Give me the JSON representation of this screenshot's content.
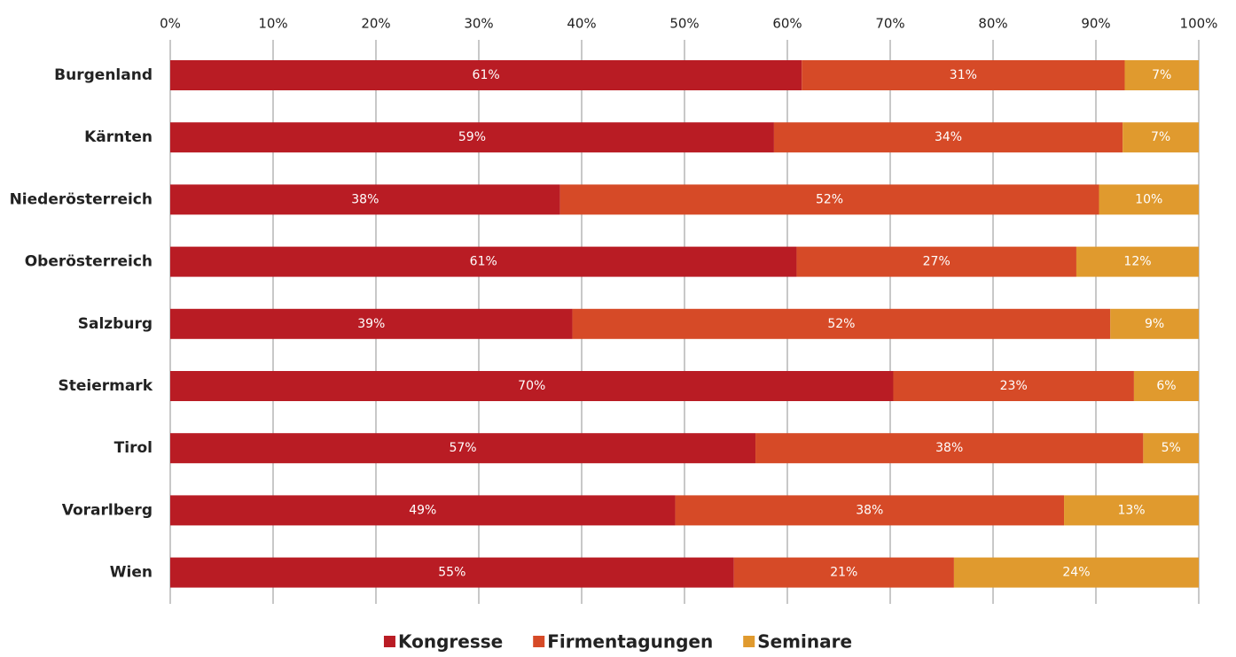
{
  "chart_data": {
    "type": "bar",
    "orientation": "horizontal",
    "stacked": true,
    "categories": [
      "Burgenland",
      "Kärnten",
      "Niederösterreich",
      "Oberösterreich",
      "Salzburg",
      "Steiermark",
      "Tirol",
      "Vorarlberg",
      "Wien"
    ],
    "series": [
      {
        "name": "Kongresse",
        "color": "#b91c24",
        "values": [
          61.4,
          58.7,
          37.9,
          60.9,
          39.1,
          70.3,
          56.9,
          49.1,
          54.8
        ],
        "value_labels": [
          "61%",
          "59%",
          "38%",
          "61%",
          "39%",
          "70%",
          "57%",
          "49%",
          "55%"
        ]
      },
      {
        "name": "Firmentagungen",
        "color": "#d64a27",
        "values": [
          31.4,
          33.9,
          52.4,
          27.2,
          52.3,
          23.4,
          37.7,
          37.8,
          21.4
        ],
        "value_labels": [
          "31%",
          "34%",
          "52%",
          "27%",
          "52%",
          "23%",
          "38%",
          "38%",
          "21%"
        ]
      },
      {
        "name": "Seminare",
        "color": "#e09a2e",
        "values": [
          7.2,
          7.4,
          9.7,
          11.9,
          8.6,
          6.3,
          5.4,
          13.1,
          23.8
        ],
        "value_labels": [
          "7%",
          "7%",
          "10%",
          "12%",
          "9%",
          "6%",
          "5%",
          "13%",
          "24%"
        ]
      }
    ],
    "xlim": [
      0,
      100
    ],
    "xticks": [
      {
        "value": 0,
        "label": "0%"
      },
      {
        "value": 10,
        "label": "10%"
      },
      {
        "value": 20,
        "label": "20%"
      },
      {
        "value": 30,
        "label": "30%"
      },
      {
        "value": 40,
        "label": "40%"
      },
      {
        "value": 50,
        "label": "50%"
      },
      {
        "value": 60,
        "label": "60%"
      },
      {
        "value": 70,
        "label": "70%"
      },
      {
        "value": 80,
        "label": "80%"
      },
      {
        "value": 90,
        "label": "90%"
      },
      {
        "value": 100,
        "label": "100%"
      }
    ],
    "grid": true,
    "legend": "bottom"
  }
}
